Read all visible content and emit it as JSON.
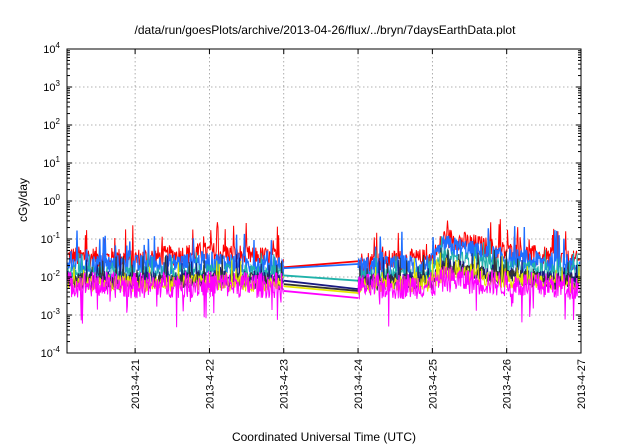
{
  "chart_data": {
    "type": "line",
    "title": "/data/run/goesPlots/archive/2013-04-26/flux/../bryn/7daysEarthData.plot",
    "xlabel": "Coordinated Universal Time (UTC)",
    "ylabel": "cGy/day",
    "xlim": [
      "2013-04-20T02:00",
      "2013-04-27T00:00"
    ],
    "ylim": [
      0.0001,
      10000
    ],
    "yscale": "log",
    "grid": true,
    "legend": "none",
    "x_ticks": [
      "2013-4-21",
      "2013-4-22",
      "2013-4-23",
      "2013-4-24",
      "2013-4-25",
      "2013-4-26",
      "2013-4-27"
    ],
    "y_ticks": [
      {
        "value": 0.0001,
        "base": "10",
        "exp": "-4"
      },
      {
        "value": 0.001,
        "base": "10",
        "exp": "-3"
      },
      {
        "value": 0.01,
        "base": "10",
        "exp": "-2"
      },
      {
        "value": 0.1,
        "base": "10",
        "exp": "-1"
      },
      {
        "value": 1,
        "base": "10",
        "exp": "0"
      },
      {
        "value": 10,
        "base": "10",
        "exp": "1"
      },
      {
        "value": 100,
        "base": "10",
        "exp": "2"
      },
      {
        "value": 1000,
        "base": "10",
        "exp": "3"
      },
      {
        "value": 10000,
        "base": "10",
        "exp": "4"
      }
    ],
    "data_gap": [
      "2013-04-23T00:00",
      "2013-04-24T00:00"
    ],
    "series": [
      {
        "color": "#ff0000",
        "gap_values": [
          0.018,
          0.026
        ],
        "x": [
          "2013-04-20T02:00",
          "2013-04-21T00:00",
          "2013-04-22T00:00",
          "2013-04-23T00:00",
          "2013-04-24T00:00",
          "2013-04-25T00:00",
          "2013-04-25T04:00",
          "2013-04-26T00:00",
          "2013-04-27T00:00"
        ],
        "values": [
          0.035,
          0.03,
          0.045,
          0.03,
          0.025,
          0.03,
          0.11,
          0.045,
          0.025
        ]
      },
      {
        "color": "#1f6fff",
        "gap_values": [
          0.017,
          0.022
        ],
        "x": [
          "2013-04-20T02:00",
          "2013-04-21T00:00",
          "2013-04-22T00:00",
          "2013-04-23T00:00",
          "2013-04-24T00:00",
          "2013-04-25T00:00",
          "2013-04-25T04:00",
          "2013-04-26T00:00",
          "2013-04-27T00:00"
        ],
        "values": [
          0.022,
          0.02,
          0.025,
          0.02,
          0.018,
          0.022,
          0.07,
          0.03,
          0.02
        ]
      },
      {
        "color": "#20b2aa",
        "gap_values": [
          0.011,
          0.008
        ],
        "x": [
          "2013-04-20T02:00",
          "2013-04-21T00:00",
          "2013-04-22T00:00",
          "2013-04-23T00:00",
          "2013-04-24T00:00",
          "2013-04-25T00:00",
          "2013-04-25T04:00",
          "2013-04-26T00:00",
          "2013-04-27T00:00"
        ],
        "values": [
          0.013,
          0.012,
          0.014,
          0.012,
          0.01,
          0.013,
          0.035,
          0.018,
          0.012
        ]
      },
      {
        "color": "#1a1a80",
        "gap_values": [
          0.008,
          0.0048
        ],
        "x": [
          "2013-04-20T02:00",
          "2013-04-21T00:00",
          "2013-04-22T00:00",
          "2013-04-23T00:00",
          "2013-04-24T00:00",
          "2013-04-25T00:00",
          "2013-04-25T04:00",
          "2013-04-26T00:00",
          "2013-04-27T00:00"
        ],
        "values": [
          0.009,
          0.0085,
          0.0095,
          0.0085,
          0.0075,
          0.009,
          0.02,
          0.011,
          0.008
        ]
      },
      {
        "color": "#333333",
        "gap_values": [
          0.0065,
          0.0043
        ],
        "x": [
          "2013-04-20T02:00",
          "2013-04-21T00:00",
          "2013-04-22T00:00",
          "2013-04-23T00:00",
          "2013-04-24T00:00",
          "2013-04-25T00:00",
          "2013-04-25T04:00",
          "2013-04-26T00:00",
          "2013-04-27T00:00"
        ],
        "values": [
          0.008,
          0.0075,
          0.0085,
          0.0075,
          0.007,
          0.008,
          0.017,
          0.01,
          0.007
        ]
      },
      {
        "color": "#e6e600",
        "gap_values": [
          0.0057,
          0.0038
        ],
        "x": [
          "2013-04-20T02:00",
          "2013-04-21T00:00",
          "2013-04-22T00:00",
          "2013-04-23T00:00",
          "2013-04-24T00:00",
          "2013-04-25T00:00",
          "2013-04-25T04:00",
          "2013-04-26T00:00",
          "2013-04-27T00:00"
        ],
        "values": [
          0.007,
          0.0065,
          0.0072,
          0.0065,
          0.006,
          0.0068,
          0.013,
          0.0085,
          0.006
        ]
      },
      {
        "color": "#ff00ff",
        "gap_values": [
          0.0043,
          0.0028
        ],
        "x": [
          "2013-04-20T02:00",
          "2013-04-21T00:00",
          "2013-04-22T00:00",
          "2013-04-23T00:00",
          "2013-04-24T00:00",
          "2013-04-25T00:00",
          "2013-04-25T04:00",
          "2013-04-26T00:00",
          "2013-04-27T00:00"
        ],
        "values": [
          0.0065,
          0.006,
          0.0065,
          0.006,
          0.0055,
          0.006,
          0.009,
          0.0065,
          0.0055
        ]
      }
    ]
  }
}
